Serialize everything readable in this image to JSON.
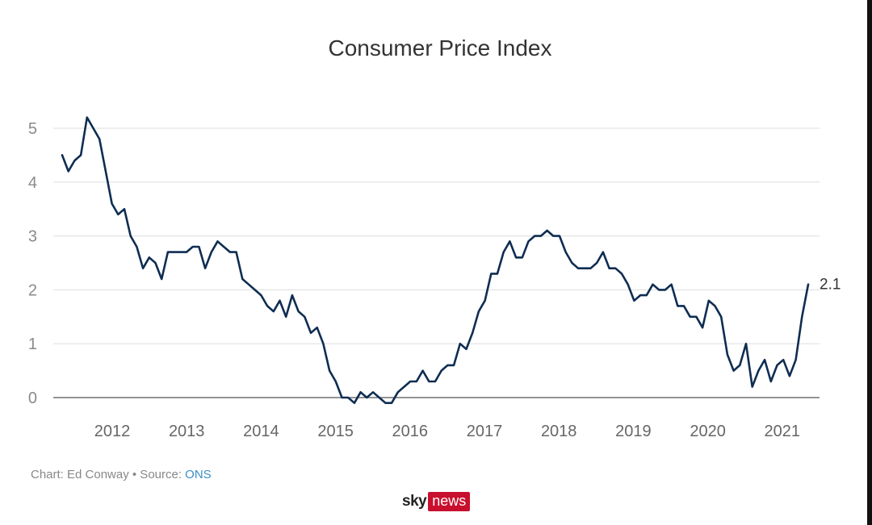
{
  "colors": {
    "line": "#0f2d52",
    "grid": "#dddddd",
    "axis": "#555555",
    "link": "#3a8fc4",
    "brand_red": "#c8102e"
  },
  "chart_data": {
    "type": "line",
    "title": "Consumer Price Index",
    "xlabel": "",
    "ylabel": "",
    "ylim": [
      0,
      5
    ],
    "yticks": [
      0,
      1,
      2,
      3,
      4,
      5
    ],
    "xticks": [
      "2012",
      "2013",
      "2014",
      "2015",
      "2016",
      "2017",
      "2018",
      "2019",
      "2020",
      "2021"
    ],
    "grid": true,
    "end_label": "2.1",
    "series": [
      {
        "x_start": "2011-05",
        "frequency": "monthly",
        "values": [
          4.5,
          4.2,
          4.4,
          4.5,
          5.2,
          5.0,
          4.8,
          4.2,
          3.6,
          3.4,
          3.5,
          3.0,
          2.8,
          2.4,
          2.6,
          2.5,
          2.2,
          2.7,
          2.7,
          2.7,
          2.7,
          2.8,
          2.8,
          2.4,
          2.7,
          2.9,
          2.8,
          2.7,
          2.7,
          2.2,
          2.1,
          2.0,
          1.9,
          1.7,
          1.6,
          1.8,
          1.5,
          1.9,
          1.6,
          1.5,
          1.2,
          1.3,
          1.0,
          0.5,
          0.3,
          0.0,
          0.0,
          -0.1,
          0.1,
          0.0,
          0.1,
          0.0,
          -0.1,
          -0.1,
          0.1,
          0.2,
          0.3,
          0.3,
          0.5,
          0.3,
          0.3,
          0.5,
          0.6,
          0.6,
          1.0,
          0.9,
          1.2,
          1.6,
          1.8,
          2.3,
          2.3,
          2.7,
          2.9,
          2.6,
          2.6,
          2.9,
          3.0,
          3.0,
          3.1,
          3.0,
          3.0,
          2.7,
          2.5,
          2.4,
          2.4,
          2.4,
          2.5,
          2.7,
          2.4,
          2.4,
          2.3,
          2.1,
          1.8,
          1.9,
          1.9,
          2.1,
          2.0,
          2.0,
          2.1,
          1.7,
          1.7,
          1.5,
          1.5,
          1.3,
          1.8,
          1.7,
          1.5,
          0.8,
          0.5,
          0.6,
          1.0,
          0.2,
          0.5,
          0.7,
          0.3,
          0.6,
          0.7,
          0.4,
          0.7,
          1.5,
          2.1
        ]
      }
    ]
  },
  "footer": {
    "credit_prefix": "Chart: Ed Conway • Source: ",
    "source_link": "ONS"
  },
  "brand": {
    "sky": "sky",
    "news": "news"
  }
}
